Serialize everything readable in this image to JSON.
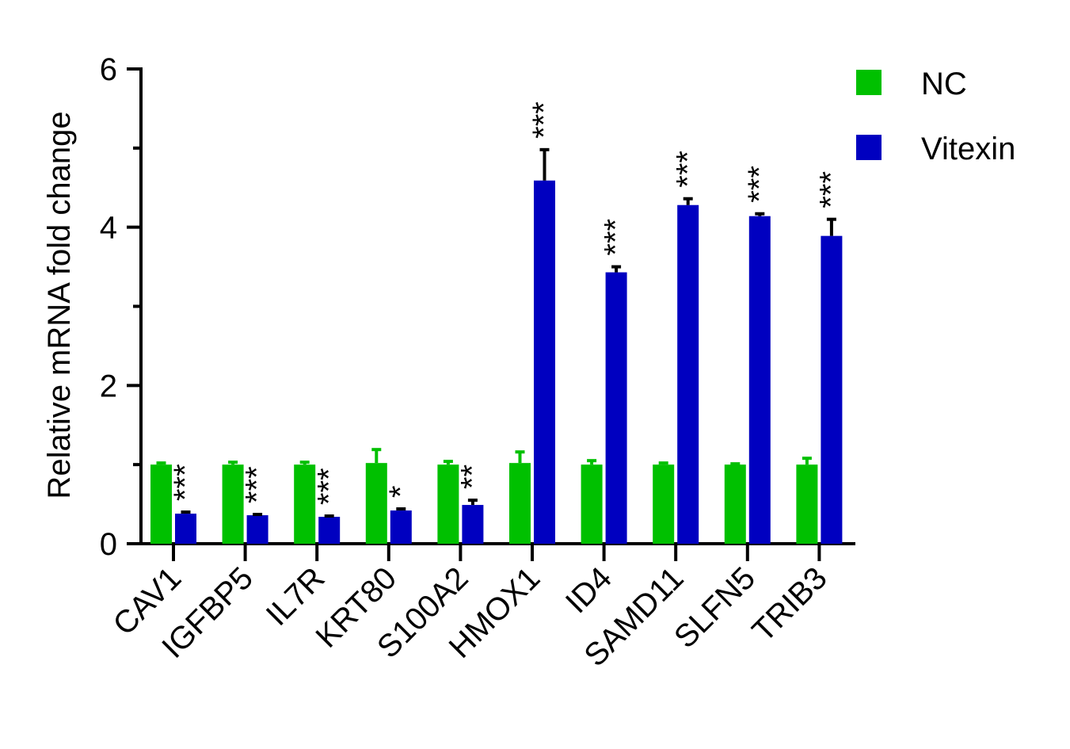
{
  "chart_data": {
    "type": "bar",
    "title": "",
    "xlabel": "",
    "ylabel": "Relative mRNA fold change",
    "ylim": [
      0,
      6
    ],
    "yticks": [
      "0",
      "2",
      "4",
      "6"
    ],
    "grid": false,
    "legend_position": "top-right",
    "categories": [
      "CAV1",
      "IGFBP5",
      "IL7R",
      "KRT80",
      "S100A2",
      "HMOX1",
      "ID4",
      "SAMD11",
      "SLFN5",
      "TRIB3"
    ],
    "series": [
      {
        "name": "NC",
        "color": "#00c000",
        "values": [
          1.0,
          1.0,
          1.0,
          1.02,
          1.0,
          1.02,
          1.0,
          1.0,
          1.0,
          1.0
        ],
        "errors": [
          0.02,
          0.03,
          0.03,
          0.17,
          0.04,
          0.14,
          0.05,
          0.02,
          0.01,
          0.08
        ]
      },
      {
        "name": "Vitexin",
        "color": "#0000c0",
        "values": [
          0.38,
          0.36,
          0.34,
          0.42,
          0.49,
          4.59,
          3.43,
          4.28,
          4.14,
          3.89
        ],
        "errors": [
          0.02,
          0.01,
          0.01,
          0.02,
          0.06,
          0.39,
          0.07,
          0.08,
          0.03,
          0.21
        ],
        "significance": [
          "***",
          "***",
          "***",
          "*",
          "**",
          "***",
          "***",
          "***",
          "***",
          "***"
        ]
      }
    ]
  }
}
